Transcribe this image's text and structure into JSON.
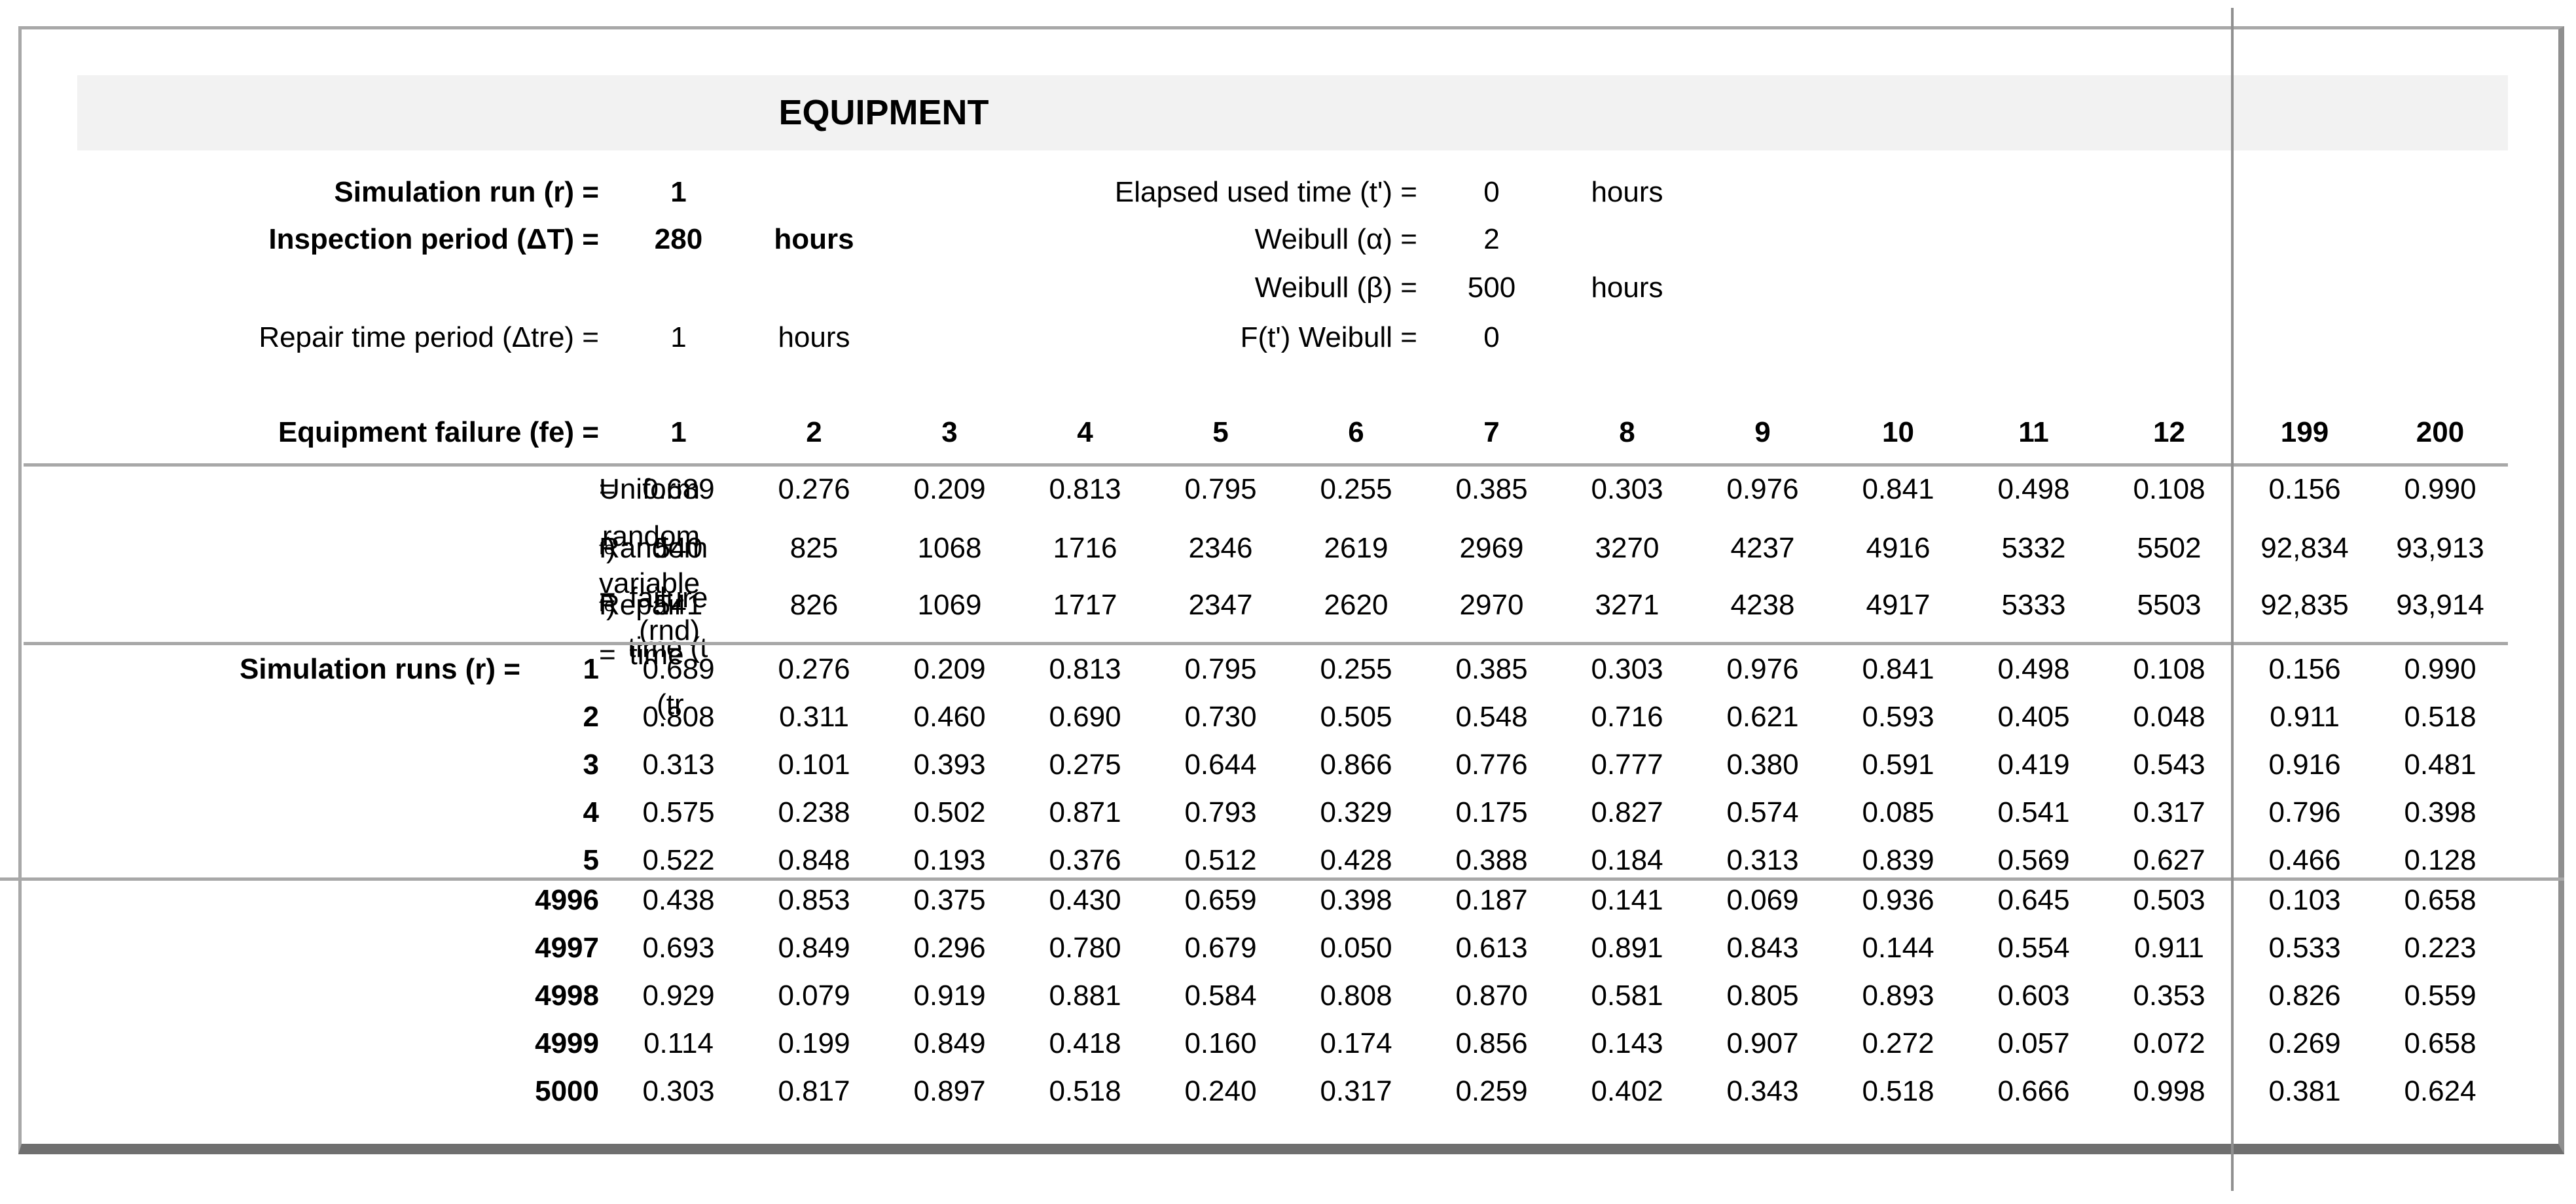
{
  "colors": {
    "band_bg": "#f2f2f2",
    "rule_gray": "#a8a8a8",
    "pane_divider": "#909090",
    "bottom_border": "#6f6f6f",
    "text": "#000000"
  },
  "title_band": {
    "title": "EQUIPMENT"
  },
  "params_left": {
    "rows": [
      {
        "label": "Simulation run (r) =",
        "value": "1",
        "unit": ""
      },
      {
        "label": "Inspection period (ΔT) =",
        "value": "280",
        "unit": "hours"
      },
      {
        "label": "Repair time period (Δtre) =",
        "value": "1",
        "unit": "hours"
      }
    ]
  },
  "params_right": {
    "rows": [
      {
        "label": "Elapsed used time (t') =",
        "value": "0",
        "unit": "hours"
      },
      {
        "label": "Weibull (α) =",
        "value": "2",
        "unit": ""
      },
      {
        "label": "Weibull (β) =",
        "value": "500",
        "unit": "hours"
      },
      {
        "label": "F(t') Weibull =",
        "value": "0",
        "unit": ""
      }
    ]
  },
  "failure_header": {
    "label": "Equipment failure (fe) =",
    "cols": [
      "1",
      "2",
      "3",
      "4",
      "5",
      "6",
      "7",
      "8",
      "9",
      "10",
      "11",
      "12"
    ],
    "cols_hidden_right": [
      "199",
      "200"
    ]
  },
  "measure_rows": [
    {
      "label_pre": "Uniform random variable (rnd)",
      "label_sub": "",
      "label_post": " =",
      "values": [
        "0.689",
        "0.276",
        "0.209",
        "0.813",
        "0.795",
        "0.255",
        "0.385",
        "0.303",
        "0.976",
        "0.841",
        "0.498",
        "0.108"
      ],
      "values_right": [
        "0.156",
        "0.990"
      ]
    },
    {
      "label_pre": "Random failure time (t",
      "label_sub": "fe",
      "label_post": ") =",
      "values": [
        "540",
        "825",
        "1068",
        "1716",
        "2346",
        "2619",
        "2969",
        "3270",
        "4237",
        "4916",
        "5332",
        "5502"
      ],
      "values_right": [
        "92,834",
        "93,913"
      ]
    },
    {
      "label_pre": "Repair time (tr",
      "label_sub": "fe",
      "label_post": ") =",
      "values": [
        "541",
        "826",
        "1069",
        "1717",
        "2347",
        "2620",
        "2970",
        "3271",
        "4238",
        "4917",
        "5333",
        "5503"
      ],
      "values_right": [
        "92,835",
        "93,914"
      ]
    }
  ],
  "runs_table": {
    "label": "Simulation runs (r) =",
    "visible_top": [
      {
        "run": "1",
        "values": [
          "0.689",
          "0.276",
          "0.209",
          "0.813",
          "0.795",
          "0.255",
          "0.385",
          "0.303",
          "0.976",
          "0.841",
          "0.498",
          "0.108"
        ],
        "values_right": [
          "0.156",
          "0.990"
        ]
      },
      {
        "run": "2",
        "values": [
          "0.808",
          "0.311",
          "0.460",
          "0.690",
          "0.730",
          "0.505",
          "0.548",
          "0.716",
          "0.621",
          "0.593",
          "0.405",
          "0.048"
        ],
        "values_right": [
          "0.911",
          "0.518"
        ]
      },
      {
        "run": "3",
        "values": [
          "0.313",
          "0.101",
          "0.393",
          "0.275",
          "0.644",
          "0.866",
          "0.776",
          "0.777",
          "0.380",
          "0.591",
          "0.419",
          "0.543"
        ],
        "values_right": [
          "0.916",
          "0.481"
        ]
      },
      {
        "run": "4",
        "values": [
          "0.575",
          "0.238",
          "0.502",
          "0.871",
          "0.793",
          "0.329",
          "0.175",
          "0.827",
          "0.574",
          "0.085",
          "0.541",
          "0.317"
        ],
        "values_right": [
          "0.796",
          "0.398"
        ]
      },
      {
        "run": "5",
        "values": [
          "0.522",
          "0.848",
          "0.193",
          "0.376",
          "0.512",
          "0.428",
          "0.388",
          "0.184",
          "0.313",
          "0.839",
          "0.569",
          "0.627"
        ],
        "values_right": [
          "0.466",
          "0.128"
        ]
      }
    ],
    "visible_bottom": [
      {
        "run": "4996",
        "values": [
          "0.438",
          "0.853",
          "0.375",
          "0.430",
          "0.659",
          "0.398",
          "0.187",
          "0.141",
          "0.069",
          "0.936",
          "0.645",
          "0.503"
        ],
        "values_right": [
          "0.103",
          "0.658"
        ]
      },
      {
        "run": "4997",
        "values": [
          "0.693",
          "0.849",
          "0.296",
          "0.780",
          "0.679",
          "0.050",
          "0.613",
          "0.891",
          "0.843",
          "0.144",
          "0.554",
          "0.911"
        ],
        "values_right": [
          "0.533",
          "0.223"
        ]
      },
      {
        "run": "4998",
        "values": [
          "0.929",
          "0.079",
          "0.919",
          "0.881",
          "0.584",
          "0.808",
          "0.870",
          "0.581",
          "0.805",
          "0.893",
          "0.603",
          "0.353"
        ],
        "values_right": [
          "0.826",
          "0.559"
        ]
      },
      {
        "run": "4999",
        "values": [
          "0.114",
          "0.199",
          "0.849",
          "0.418",
          "0.160",
          "0.174",
          "0.856",
          "0.143",
          "0.907",
          "0.272",
          "0.057",
          "0.072"
        ],
        "values_right": [
          "0.269",
          "0.658"
        ]
      },
      {
        "run": "5000",
        "values": [
          "0.303",
          "0.817",
          "0.897",
          "0.518",
          "0.240",
          "0.317",
          "0.259",
          "0.402",
          "0.343",
          "0.518",
          "0.666",
          "0.998"
        ],
        "values_right": [
          "0.381",
          "0.624"
        ]
      }
    ]
  }
}
